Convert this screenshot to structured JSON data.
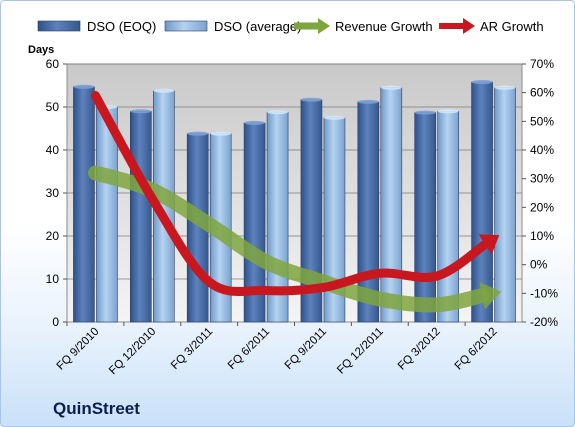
{
  "chart_data": {
    "type": "bar",
    "company": "QuinStreet",
    "y_left_label": "Days",
    "y_left_lim": [
      0,
      60
    ],
    "y_left_ticks": [
      "0",
      "10",
      "20",
      "30",
      "40",
      "50",
      "60"
    ],
    "y_right_lim": [
      -20,
      70
    ],
    "y_right_ticks": [
      "-20%",
      "-10%",
      "0%",
      "10%",
      "20%",
      "30%",
      "40%",
      "50%",
      "60%",
      "70%"
    ],
    "categories": [
      "FQ 9/2010",
      "FQ 12/2010",
      "FQ 3/2011",
      "FQ 6/2011",
      "FQ 9/2011",
      "FQ 12/2011",
      "FQ 3/2012",
      "FQ 6/2012"
    ],
    "bar_series": [
      {
        "name": "DSO (EOQ)",
        "color": "#4a6ea8",
        "values": [
          54.7,
          49,
          43.8,
          46.3,
          51.7,
          51.2,
          48.7,
          55.8
        ]
      },
      {
        "name": "DSO (average)",
        "color": "#97bde3",
        "values": [
          50,
          53.8,
          43.8,
          48.8,
          47.5,
          54.5,
          49,
          54.5
        ]
      }
    ],
    "line_series": [
      {
        "name": "Revenue Growth",
        "color": "#7fa63e",
        "axis": "right",
        "values": [
          32,
          26,
          14,
          1,
          -6,
          -12,
          -14,
          -10
        ]
      },
      {
        "name": "AR Growth",
        "color": "#c8171f",
        "axis": "right",
        "values": [
          59,
          23,
          -6,
          -9,
          -8,
          -3,
          -4,
          9
        ]
      }
    ],
    "grid": "horizontal",
    "legend_position": "top"
  }
}
